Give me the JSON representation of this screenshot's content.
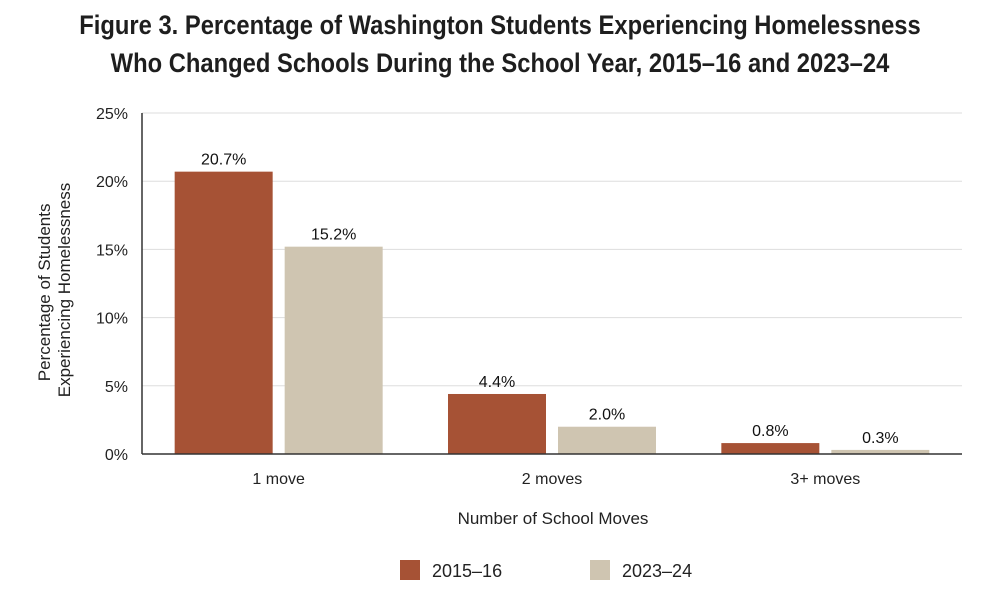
{
  "title": {
    "line1": "Figure 3. Percentage of Washington Students Experiencing Homelessness",
    "line2": "Who Changed Schools During the School Year, 2015–16 and 2023–24"
  },
  "chart_data": {
    "type": "bar",
    "categories": [
      "1 move",
      "2 moves",
      "3+ moves"
    ],
    "series": [
      {
        "name": "2015–16",
        "values": [
          20.7,
          4.4,
          0.8
        ],
        "labels": [
          "20.7%",
          "4.4%",
          "0.8%"
        ],
        "color": "#A65235"
      },
      {
        "name": "2023–24",
        "values": [
          15.2,
          2.0,
          0.3
        ],
        "labels": [
          "15.2%",
          "2.0%",
          "0.3%"
        ],
        "color": "#CFC5B1"
      }
    ],
    "xlabel": "Number of School Moves",
    "ylabel_lines": [
      "Percentage of Students",
      "Experiencing Homelessness"
    ],
    "ylim": [
      0,
      25
    ],
    "yticks": [
      0,
      5,
      10,
      15,
      20,
      25
    ],
    "ytick_labels": [
      "0%",
      "5%",
      "10%",
      "15%",
      "20%",
      "25%"
    ],
    "grid": true,
    "legend_position": "bottom-center",
    "gridline_color": "#DDDDDD",
    "axis_color": "#333333"
  }
}
